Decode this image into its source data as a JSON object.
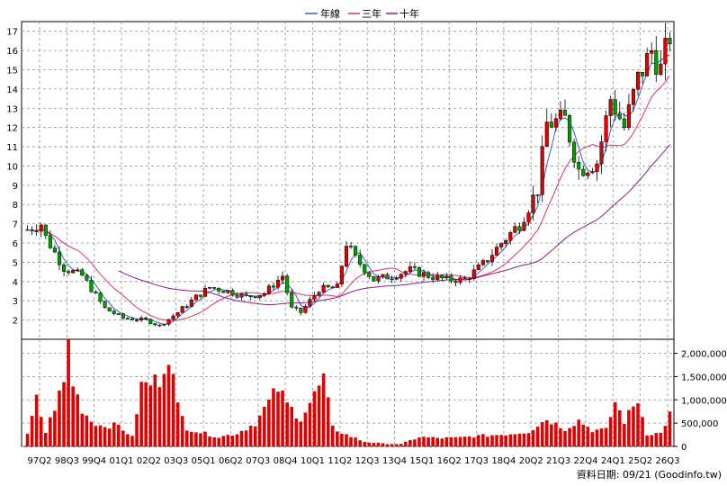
{
  "chart_data": {
    "type": "candlestick",
    "legend": [
      {
        "name": "年線",
        "color": "#3a5fcd"
      },
      {
        "name": "三年",
        "color": "#e0306a"
      },
      {
        "name": "十年",
        "color": "#8b1a8b"
      }
    ],
    "colors": {
      "up": "#e00000",
      "down": "#00a000",
      "volume": "#e00000",
      "grid": "#909090"
    },
    "price_axis": {
      "min": 1,
      "max": 17.5,
      "ticks": [
        2,
        3,
        4,
        5,
        6,
        7,
        8,
        9,
        10,
        11,
        12,
        13,
        14,
        15,
        16,
        17
      ]
    },
    "volume_axis": {
      "min": 0,
      "max": 2300000,
      "ticks": [
        0,
        500000,
        1000000,
        1500000,
        2000000
      ],
      "tick_labels": [
        "0",
        "500,000",
        "1,000,000",
        "1,500,000",
        "2,000,000"
      ]
    },
    "x_tick_labels": [
      "97Q2",
      "98Q3",
      "99Q4",
      "01Q1",
      "02Q2",
      "03Q3",
      "05Q1",
      "06Q2",
      "07Q3",
      "08Q4",
      "10Q1",
      "11Q2",
      "12Q3",
      "13Q4",
      "15Q1",
      "16Q2",
      "17Q3",
      "18Q4",
      "20Q2",
      "21Q3",
      "22Q4",
      "24Q1",
      "25Q2",
      "26Q3"
    ],
    "source_text": "資料日期: 09/21  (Goodinfo.tw)",
    "anchors": [
      [
        0,
        6.7
      ],
      [
        3,
        7.0
      ],
      [
        4,
        6.3
      ],
      [
        8,
        4.7
      ],
      [
        12,
        4.3
      ],
      [
        17,
        2.6
      ],
      [
        21,
        2.1
      ],
      [
        26,
        2.0
      ],
      [
        29,
        1.7
      ],
      [
        33,
        2.4
      ],
      [
        37,
        3.2
      ],
      [
        40,
        3.7
      ],
      [
        44,
        3.5
      ],
      [
        48,
        3.2
      ],
      [
        52,
        3.4
      ],
      [
        56,
        4.3
      ],
      [
        58,
        2.6
      ],
      [
        60,
        2.4
      ],
      [
        64,
        3.6
      ],
      [
        68,
        3.7
      ],
      [
        70,
        6.0
      ],
      [
        72,
        5.2
      ],
      [
        76,
        4.1
      ],
      [
        80,
        4.3
      ],
      [
        84,
        4.6
      ],
      [
        88,
        4.3
      ],
      [
        92,
        4.1
      ],
      [
        96,
        4.1
      ],
      [
        100,
        4.9
      ],
      [
        104,
        6.0
      ],
      [
        108,
        7.0
      ],
      [
        112,
        8.8
      ],
      [
        114,
        12.2
      ],
      [
        118,
        12.4
      ],
      [
        121,
        9.8
      ],
      [
        125,
        10.2
      ],
      [
        128,
        13.5
      ],
      [
        131,
        12.0
      ],
      [
        134,
        14.5
      ],
      [
        137,
        16.0
      ],
      [
        139,
        15.0
      ],
      [
        141,
        16.8
      ]
    ],
    "volume_anchors": [
      [
        0,
        240000
      ],
      [
        2,
        1000000
      ],
      [
        4,
        300000
      ],
      [
        6,
        850000
      ],
      [
        8,
        1350000
      ],
      [
        9,
        2300000
      ],
      [
        10,
        1350000
      ],
      [
        12,
        800000
      ],
      [
        14,
        550000
      ],
      [
        16,
        450000
      ],
      [
        20,
        450000
      ],
      [
        23,
        200000
      ],
      [
        25,
        1300000
      ],
      [
        27,
        1350000
      ],
      [
        29,
        1450000
      ],
      [
        31,
        2050000
      ],
      [
        33,
        850000
      ],
      [
        35,
        400000
      ],
      [
        38,
        300000
      ],
      [
        42,
        200000
      ],
      [
        46,
        280000
      ],
      [
        50,
        500000
      ],
      [
        55,
        1250000
      ],
      [
        57,
        900000
      ],
      [
        60,
        600000
      ],
      [
        63,
        1100000
      ],
      [
        65,
        1450000
      ],
      [
        67,
        400000
      ],
      [
        70,
        250000
      ],
      [
        74,
        100000
      ],
      [
        78,
        60000
      ],
      [
        82,
        50000
      ],
      [
        86,
        200000
      ],
      [
        90,
        180000
      ],
      [
        94,
        180000
      ],
      [
        98,
        220000
      ],
      [
        102,
        240000
      ],
      [
        106,
        270000
      ],
      [
        110,
        320000
      ],
      [
        114,
        590000
      ],
      [
        118,
        380000
      ],
      [
        121,
        560000
      ],
      [
        124,
        350000
      ],
      [
        127,
        350000
      ],
      [
        129,
        950000
      ],
      [
        131,
        540000
      ],
      [
        133,
        850000
      ],
      [
        134,
        1000000
      ],
      [
        136,
        270000
      ],
      [
        139,
        280000
      ],
      [
        141,
        690000
      ]
    ]
  }
}
